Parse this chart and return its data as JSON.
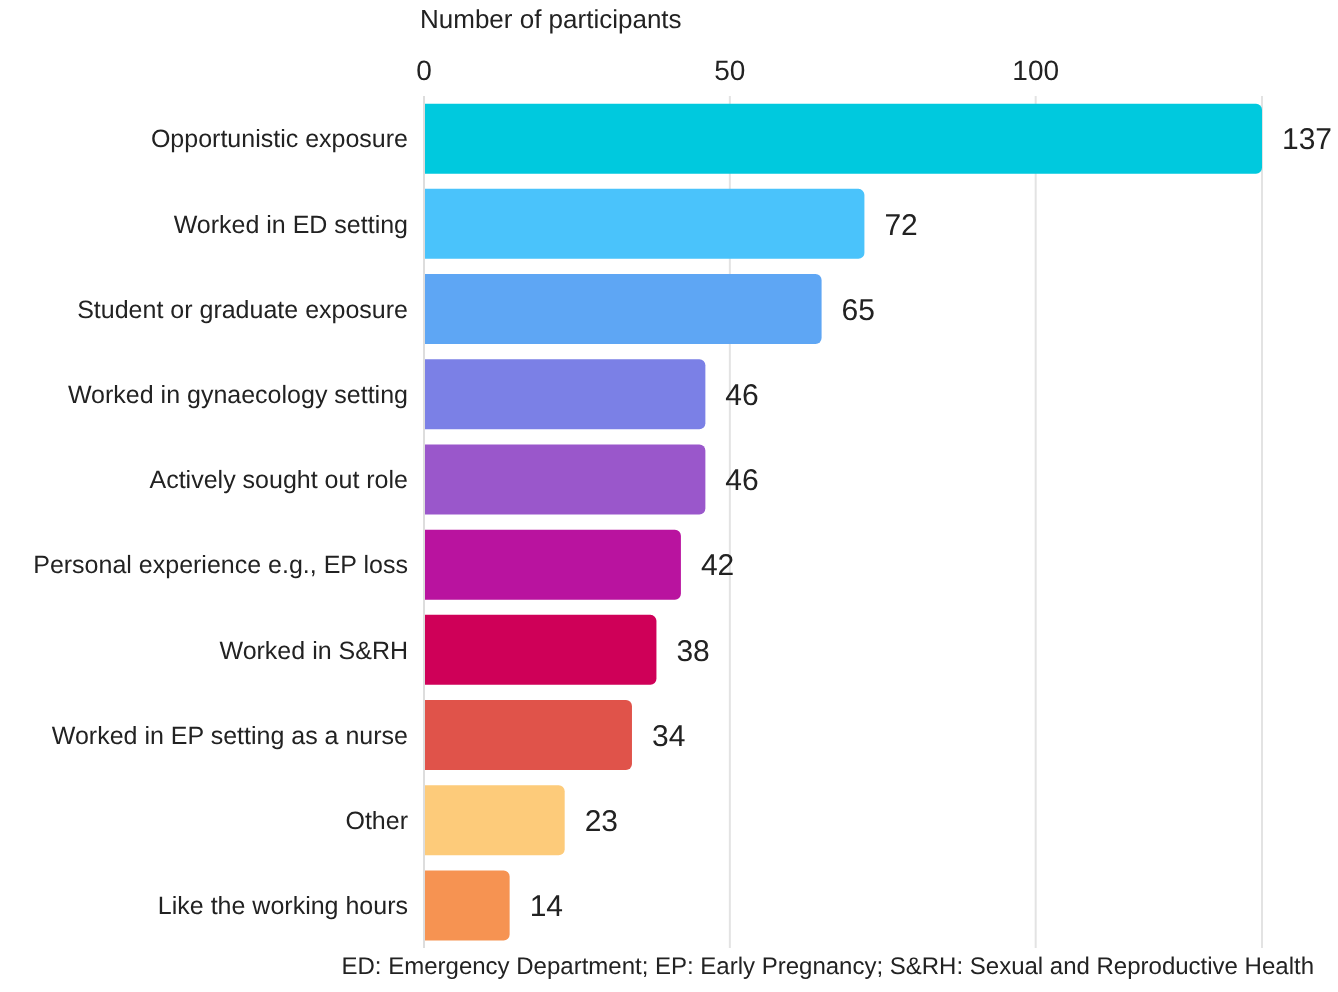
{
  "chart_data": {
    "type": "bar",
    "orientation": "horizontal",
    "xlabel": "Number of participants",
    "categories": [
      "Opportunistic exposure",
      "Worked in ED setting",
      "Student or graduate exposure",
      "Worked in gynaecology setting",
      "Actively sought out role",
      "Personal experience e.g., EP loss",
      "Worked in S&RH",
      "Worked in EP setting as a nurse",
      "Other",
      "Like the working hours"
    ],
    "values": [
      137,
      72,
      65,
      46,
      46,
      42,
      38,
      34,
      23,
      14
    ],
    "colors": [
      "#00c9de",
      "#4ac3fb",
      "#5ea6f4",
      "#7b80e6",
      "#9a57cb",
      "#b9139f",
      "#cf0058",
      "#e0534a",
      "#fdcb7a",
      "#f69352"
    ],
    "xlim": [
      0,
      137
    ],
    "xticks": [
      0,
      50,
      100
    ],
    "grid": "x",
    "data_labels": true,
    "annotations": [
      "ED: Emergency Department; EP: Early Pregnancy; S&RH: Sexual and Reproductive Health"
    ]
  }
}
